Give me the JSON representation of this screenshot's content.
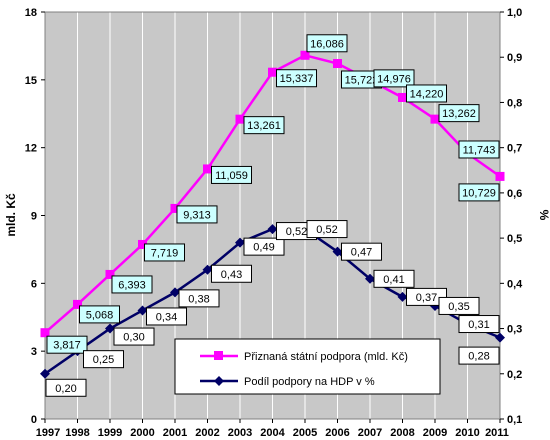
{
  "chart_data": {
    "type": "line",
    "categories": [
      "1997",
      "1998",
      "1999",
      "2000",
      "2001",
      "2002",
      "2003",
      "2004",
      "2005",
      "2006",
      "2007",
      "2008",
      "2009",
      "2010",
      "2011"
    ],
    "ylabel": "mld. Kč",
    "y2label": "%",
    "ylim": [
      0,
      18
    ],
    "y_ticks": [
      "0",
      "3",
      "6",
      "9",
      "12",
      "15",
      "18"
    ],
    "y2lim": [
      0.1,
      1.0
    ],
    "y2_ticks": [
      "0,1",
      "0,2",
      "0,3",
      "0,4",
      "0,5",
      "0,6",
      "0,7",
      "0,8",
      "0,9",
      "1,0"
    ],
    "legend_position": "bottom-center",
    "grid": "vertical",
    "plot_background": "#c8c8c8",
    "series": [
      {
        "name": "Přiznaná státní podpora (mld. Kč)",
        "axis": "left",
        "color": "#ff00ff",
        "marker": "square",
        "label_fill": "#ccffff",
        "values": [
          3.817,
          5.068,
          6.393,
          7.719,
          9.313,
          11.059,
          13.261,
          15.337,
          16.086,
          15.722,
          14.976,
          14.22,
          13.262,
          11.743,
          10.729
        ],
        "labels": [
          "3,817",
          "5,068",
          "6,393",
          "7,719",
          "9,313",
          "11,059",
          "13,261",
          "15,337",
          "16,086",
          "15,722",
          "14,976",
          "14,220",
          "13,262",
          "11,743",
          "10,729"
        ]
      },
      {
        "name": "Podíl podpory na HDP v %",
        "axis": "right",
        "color": "#000066",
        "marker": "diamond",
        "label_fill": "#ffffff",
        "values": [
          0.2,
          0.25,
          0.3,
          0.34,
          0.38,
          0.43,
          0.49,
          0.52,
          0.52,
          0.47,
          0.41,
          0.37,
          0.35,
          0.31,
          0.28
        ],
        "labels": [
          "0,20",
          "0,25",
          "0,30",
          "0,34",
          "0,38",
          "0,43",
          "0,49",
          "0,52",
          "0,52",
          "0,47",
          "0,41",
          "0,37",
          "0,35",
          "0,31",
          "0,28"
        ]
      }
    ]
  }
}
